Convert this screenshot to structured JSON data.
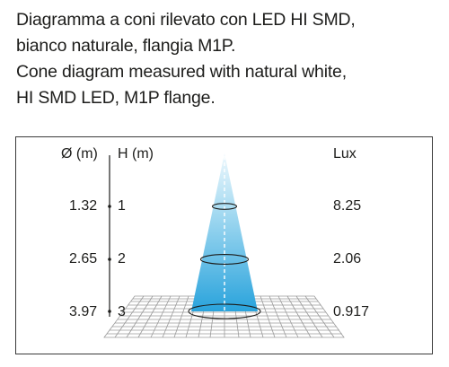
{
  "caption": {
    "line1": "Diagramma a coni rilevato con LED HI SMD,",
    "line2": "bianco naturale, flangia M1P.",
    "line3": "Cone diagram measured with natural white,",
    "line4": "HI SMD LED, M1P flange."
  },
  "headers": {
    "diameter": "Ø (m)",
    "height": "H (m)",
    "lux": "Lux"
  },
  "rows": [
    {
      "diameter": "1.32",
      "height": "1",
      "lux": "8.25"
    },
    {
      "diameter": "2.65",
      "height": "2",
      "lux": "2.06"
    },
    {
      "diameter": "3.97",
      "height": "3",
      "lux": "0.917"
    }
  ],
  "colors": {
    "cone_top": "#e9f5fb",
    "cone_bottom": "#2aa4dc",
    "axis_dash": "#ffffff",
    "line": "#1d1d1b",
    "grid": "#9a9a9a"
  }
}
